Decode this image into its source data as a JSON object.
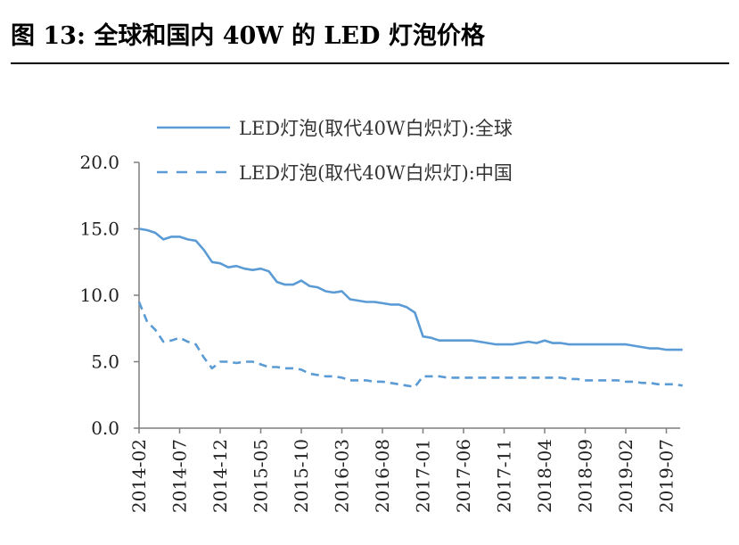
{
  "figure": {
    "title": "图 13:  全球和国内 40W 的 LED 灯泡价格"
  },
  "colors": {
    "series": "#5b9bd5",
    "axis": "#7f7f7f",
    "text": "#222222"
  },
  "chart_data": {
    "type": "line",
    "title": "",
    "xlabel": "",
    "ylabel": "",
    "ylim": [
      0,
      20
    ],
    "yticks": [
      "0.0",
      "5.0",
      "10.0",
      "15.0",
      "20.0"
    ],
    "xticks": [
      "2014-02",
      "2014-07",
      "2014-12",
      "2015-05",
      "2015-10",
      "2016-03",
      "2016-08",
      "2017-01",
      "2017-06",
      "2017-11",
      "2018-04",
      "2018-09",
      "2019-02",
      "2019-07"
    ],
    "x": [
      "2014-02",
      "2014-03",
      "2014-04",
      "2014-05",
      "2014-06",
      "2014-07",
      "2014-08",
      "2014-09",
      "2014-10",
      "2014-11",
      "2014-12",
      "2015-01",
      "2015-02",
      "2015-03",
      "2015-04",
      "2015-05",
      "2015-06",
      "2015-07",
      "2015-08",
      "2015-09",
      "2015-10",
      "2015-11",
      "2015-12",
      "2016-01",
      "2016-02",
      "2016-03",
      "2016-04",
      "2016-05",
      "2016-06",
      "2016-07",
      "2016-08",
      "2016-09",
      "2016-10",
      "2016-11",
      "2016-12",
      "2017-01",
      "2017-02",
      "2017-03",
      "2017-04",
      "2017-05",
      "2017-06",
      "2017-07",
      "2017-08",
      "2017-09",
      "2017-10",
      "2017-11",
      "2017-12",
      "2018-01",
      "2018-02",
      "2018-03",
      "2018-04",
      "2018-05",
      "2018-06",
      "2018-07",
      "2018-08",
      "2018-09",
      "2018-10",
      "2018-11",
      "2018-12",
      "2019-01",
      "2019-02",
      "2019-03",
      "2019-04",
      "2019-05",
      "2019-06",
      "2019-07",
      "2019-08",
      "2019-09"
    ],
    "series": [
      {
        "name": "LED灯泡(取代40W白炽灯):全球",
        "style": "solid",
        "values": [
          15.0,
          14.9,
          14.7,
          14.2,
          14.4,
          14.4,
          14.2,
          14.1,
          13.4,
          12.5,
          12.4,
          12.1,
          12.2,
          12.0,
          11.9,
          12.0,
          11.8,
          11.0,
          10.8,
          10.8,
          11.1,
          10.7,
          10.6,
          10.3,
          10.2,
          10.3,
          9.7,
          9.6,
          9.5,
          9.5,
          9.4,
          9.3,
          9.3,
          9.1,
          8.7,
          6.9,
          6.8,
          6.6,
          6.6,
          6.6,
          6.6,
          6.6,
          6.5,
          6.4,
          6.3,
          6.3,
          6.3,
          6.4,
          6.5,
          6.4,
          6.6,
          6.4,
          6.4,
          6.3,
          6.3,
          6.3,
          6.3,
          6.3,
          6.3,
          6.3,
          6.3,
          6.2,
          6.1,
          6.0,
          6.0,
          5.9,
          5.9,
          5.9
        ]
      },
      {
        "name": "LED灯泡(取代40W白炽灯):中国",
        "style": "dashed",
        "values": [
          9.5,
          8.0,
          7.4,
          6.5,
          6.6,
          6.8,
          6.5,
          6.3,
          5.3,
          4.5,
          5.0,
          5.0,
          4.9,
          5.0,
          5.0,
          4.8,
          4.6,
          4.6,
          4.5,
          4.5,
          4.4,
          4.1,
          4.0,
          3.9,
          3.9,
          3.8,
          3.6,
          3.6,
          3.6,
          3.5,
          3.5,
          3.4,
          3.3,
          3.2,
          3.1,
          3.9,
          3.9,
          3.9,
          3.8,
          3.8,
          3.8,
          3.8,
          3.8,
          3.8,
          3.8,
          3.8,
          3.8,
          3.8,
          3.8,
          3.8,
          3.8,
          3.8,
          3.8,
          3.7,
          3.7,
          3.6,
          3.6,
          3.6,
          3.6,
          3.6,
          3.5,
          3.5,
          3.4,
          3.4,
          3.3,
          3.3,
          3.3,
          3.2
        ]
      }
    ],
    "legend": "top"
  }
}
